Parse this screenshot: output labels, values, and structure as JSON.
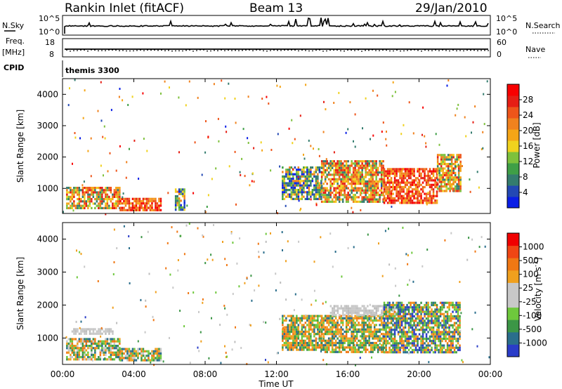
{
  "header": {
    "station": "Rankin Inlet (fitACF)",
    "beam": "Beam 13",
    "date": "29/Jan/2010"
  },
  "nsky_panel": {
    "left_label": "N.Sky",
    "right_label": "N.Search",
    "tick_top": "10^5",
    "tick_bottom": "10^0"
  },
  "freq_panel": {
    "left_label_line1": "Freq.",
    "left_label_line2": "[MHz]",
    "right_label": "Nave",
    "left_ticks": [
      "18",
      "8"
    ],
    "right_ticks": [
      "60",
      "0"
    ]
  },
  "cpid_panel": {
    "label": "CPID",
    "value": "themis 3300"
  },
  "chart_data": [
    {
      "type": "heatmap",
      "panel": "power",
      "xlabel": "",
      "ylabel": "Slant Range [km]",
      "ylim": [
        200,
        4500
      ],
      "yticks": [
        "1000",
        "2000",
        "3000",
        "4000"
      ],
      "xlim": [
        "00:00",
        "24:00"
      ],
      "colorbar": {
        "label": "Power [dB]",
        "ticks": [
          "4",
          "8",
          "12",
          "16",
          "20",
          "24",
          "28"
        ],
        "colors": [
          "#0a1ee6",
          "#2348b4",
          "#347c6e",
          "#3f9f46",
          "#7ec13c",
          "#f0d21e",
          "#f5a516",
          "#f0821e",
          "#ee551a",
          "#e61e14",
          "#f80000"
        ]
      },
      "regions": [
        {
          "t0": 0.2,
          "t1": 3.2,
          "r0": 350,
          "r1": 1050,
          "level": "mixed-high"
        },
        {
          "t0": 3.2,
          "t1": 5.5,
          "r0": 300,
          "r1": 700,
          "level": "high"
        },
        {
          "t0": 6.3,
          "t1": 6.8,
          "r0": 300,
          "r1": 1000,
          "level": "mixed"
        },
        {
          "t0": 12.3,
          "t1": 14.5,
          "r0": 650,
          "r1": 1700,
          "level": "mixed"
        },
        {
          "t0": 14.5,
          "t1": 18.0,
          "r0": 600,
          "r1": 1900,
          "level": "mixed-high"
        },
        {
          "t0": 18.0,
          "t1": 21.0,
          "r0": 550,
          "r1": 1650,
          "level": "high"
        },
        {
          "t0": 21.0,
          "t1": 22.3,
          "r0": 900,
          "r1": 2100,
          "level": "mixed-high"
        }
      ]
    },
    {
      "type": "heatmap",
      "panel": "velocity",
      "xlabel": "Time UT",
      "ylabel": "Slant Range [km]",
      "ylim": [
        200,
        4500
      ],
      "yticks": [
        "1000",
        "2000",
        "3000",
        "4000"
      ],
      "xticks": [
        "00:00",
        "04:00",
        "08:00",
        "12:00",
        "16:00",
        "20:00",
        "00:00"
      ],
      "xlim": [
        "00:00",
        "24:00"
      ],
      "colorbar": {
        "label": "Velocity [m s^-1]",
        "ticks": [
          "1000",
          "500",
          "100",
          "25",
          "-25",
          "-100",
          "-500",
          "-1000"
        ],
        "colors": [
          "#2a3cc8",
          "#2a6e8c",
          "#3c9646",
          "#6ec83c",
          "#c8c8c8",
          "#c8c8c8",
          "#f0a01e",
          "#f07814",
          "#f04614",
          "#f00000"
        ]
      },
      "regions": [
        {
          "t0": 0.2,
          "t1": 3.2,
          "r0": 350,
          "r1": 1000,
          "level": "mixed"
        },
        {
          "t0": 0.5,
          "t1": 2.8,
          "r0": 1100,
          "r1": 1300,
          "level": "ground"
        },
        {
          "t0": 3.2,
          "t1": 5.5,
          "r0": 300,
          "r1": 700,
          "level": "mixed"
        },
        {
          "t0": 12.3,
          "t1": 14.5,
          "r0": 650,
          "r1": 1700,
          "level": "negative"
        },
        {
          "t0": 14.5,
          "t1": 18.0,
          "r0": 600,
          "r1": 1700,
          "level": "negative"
        },
        {
          "t0": 15.0,
          "t1": 19.0,
          "r0": 1700,
          "r1": 2000,
          "level": "ground"
        },
        {
          "t0": 18.0,
          "t1": 22.3,
          "r0": 550,
          "r1": 2100,
          "level": "positive-mixed"
        }
      ]
    }
  ]
}
